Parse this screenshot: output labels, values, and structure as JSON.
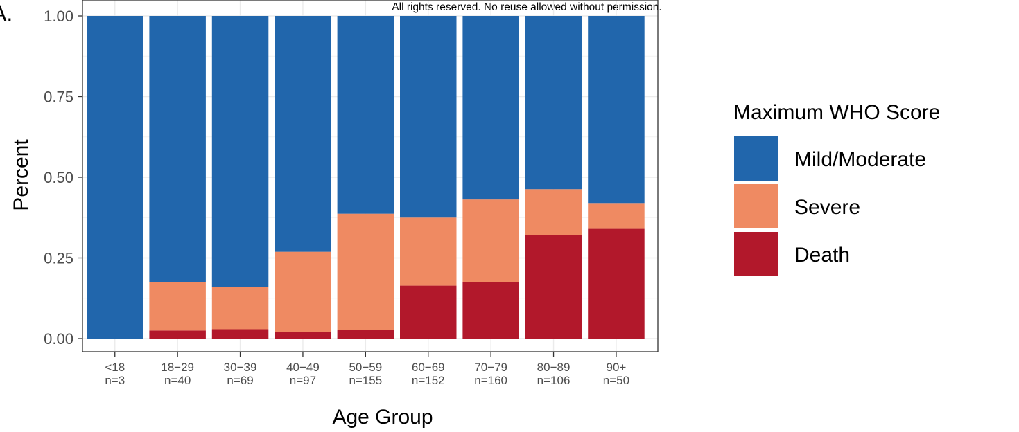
{
  "panel_label": "A.",
  "notice": "All rights reserved. No reuse allowed without permission.",
  "colors": {
    "Mild/Moderate": "#2166ac",
    "Severe": "#ef8a62",
    "Death": "#b2182b"
  },
  "chart_data": {
    "type": "bar",
    "stacked": true,
    "xlabel": "Age Group",
    "ylabel": "Percent",
    "ylim": [
      0,
      1
    ],
    "yticks": [
      "0.00",
      "0.25",
      "0.50",
      "0.75",
      "1.00"
    ],
    "grid": true,
    "legend_position": "right",
    "legend_title": "Maximum WHO Score",
    "categories": [
      {
        "label": "<18",
        "n": "n=3"
      },
      {
        "label": "18−29",
        "n": "n=40"
      },
      {
        "label": "30−39",
        "n": "n=69"
      },
      {
        "label": "40−49",
        "n": "n=97"
      },
      {
        "label": "50−59",
        "n": "n=155"
      },
      {
        "label": "60−69",
        "n": "n=152"
      },
      {
        "label": "70−79",
        "n": "n=160"
      },
      {
        "label": "80−89",
        "n": "n=106"
      },
      {
        "label": "90+",
        "n": "n=50"
      }
    ],
    "series": [
      {
        "name": "Death",
        "values": [
          0.0,
          0.025,
          0.029,
          0.021,
          0.026,
          0.164,
          0.175,
          0.321,
          0.34
        ]
      },
      {
        "name": "Severe",
        "values": [
          0.0,
          0.15,
          0.131,
          0.248,
          0.361,
          0.211,
          0.256,
          0.142,
          0.08
        ]
      },
      {
        "name": "Mild/Moderate",
        "values": [
          1.0,
          0.825,
          0.84,
          0.731,
          0.613,
          0.625,
          0.569,
          0.537,
          0.58
        ]
      }
    ],
    "legend_order": [
      "Mild/Moderate",
      "Severe",
      "Death"
    ]
  }
}
